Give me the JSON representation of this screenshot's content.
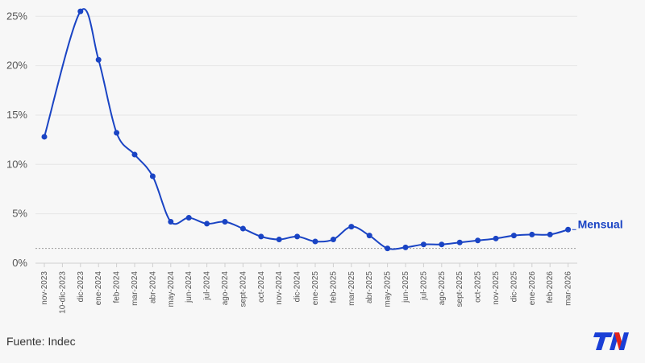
{
  "source": "Fuente: Indec",
  "logo": {
    "text": "TN",
    "colors": [
      "#1a3fd6",
      "#e2231a"
    ]
  },
  "chart_data": {
    "type": "line",
    "title": "",
    "xlabel": "",
    "ylabel": "",
    "ylim": [
      0,
      26
    ],
    "yticks": [
      0,
      5,
      10,
      15,
      20,
      25
    ],
    "ytick_labels": [
      "0%",
      "5%",
      "10%",
      "15%",
      "20%",
      "25%"
    ],
    "grid": true,
    "reference_line": 1.5,
    "color": "#1a44c4",
    "categories": [
      "nov-2023",
      "10-dic-2023",
      "dic-2023",
      "ene-2024",
      "feb-2024",
      "mar-2024",
      "abr-2024",
      "may-2024",
      "jun-2024",
      "jul-2024",
      "ago-2024",
      "sept-2024",
      "oct-2024",
      "nov-2024",
      "dic-2024",
      "ene-2025",
      "feb-2025",
      "mar-2025",
      "abr-2025",
      "may-2025",
      "jun-2025",
      "jul-2025",
      "ago-2025",
      "sept-2025",
      "oct-2025",
      "nov-2025",
      "dic-2025",
      "ene-2026",
      "feb-2026",
      "mar-2026"
    ],
    "series": [
      {
        "name": "Mensual",
        "values": [
          12.8,
          null,
          25.5,
          20.6,
          13.2,
          11.0,
          8.8,
          4.2,
          4.6,
          4.0,
          4.2,
          3.5,
          2.7,
          2.4,
          2.7,
          2.2,
          2.4,
          3.7,
          2.8,
          1.5,
          1.6,
          1.9,
          1.9,
          2.1,
          2.3,
          2.5,
          2.8,
          2.9,
          2.9,
          3.4
        ]
      }
    ]
  }
}
